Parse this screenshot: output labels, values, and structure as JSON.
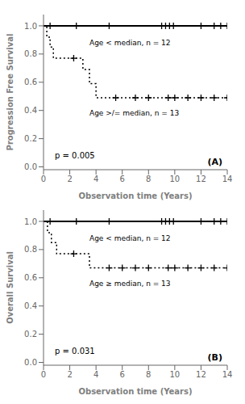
{
  "chart_data": [
    {
      "type": "line",
      "title": "(A)",
      "xlabel": "Observation time (Years)",
      "ylabel": "Progression Free Survival",
      "xlim": [
        0,
        14
      ],
      "ylim": [
        -0.02,
        1.08
      ],
      "xticks": [
        0,
        2,
        4,
        6,
        8,
        10,
        12,
        14
      ],
      "yticks": [
        {
          "value": 0.0,
          "label": "0.0"
        },
        0.2,
        0.4,
        0.6,
        0.8,
        {
          "value": 1.0,
          "label": "1.0"
        }
      ],
      "grid": false,
      "series": [
        {
          "type": "step",
          "line_style": "solid",
          "color": "#000000",
          "x": [
            0,
            0.5,
            2.5,
            5.0,
            9.0,
            9.3,
            9.6,
            9.9,
            12.0,
            13.0,
            13.5,
            14.0
          ],
          "values": [
            1.0,
            1.0,
            1.0,
            1.0,
            1.0,
            1.0,
            1.0,
            1.0,
            1.0,
            1.0,
            1.0,
            1.0
          ]
        },
        {
          "type": "scatter",
          "marker": "+",
          "color": "#000000",
          "x": [
            0.5,
            2.5,
            5.0,
            9.0,
            9.3,
            9.6,
            9.9,
            12.0,
            13.0,
            13.5,
            14.0
          ],
          "values": [
            1.0,
            1.0,
            1.0,
            1.0,
            1.0,
            1.0,
            1.0,
            1.0,
            1.0,
            1.0,
            1.0
          ]
        },
        {
          "type": "step",
          "line_style": "dotted",
          "color": "#000000",
          "x": [
            0,
            0.25,
            0.5,
            0.75,
            1.0,
            2.3,
            3.0,
            3.5,
            4.0,
            5.0,
            14.0
          ],
          "values": [
            1.0,
            0.92,
            0.85,
            0.77,
            0.77,
            0.77,
            0.69,
            0.59,
            0.49,
            0.49,
            0.49
          ]
        },
        {
          "type": "scatter",
          "marker": "+",
          "color": "#000000",
          "x": [
            2.3,
            5.5,
            7.0,
            8.0,
            9.5,
            10.0,
            11.0,
            12.0,
            13.0,
            14.0
          ],
          "values": [
            0.77,
            0.49,
            0.49,
            0.49,
            0.49,
            0.49,
            0.49,
            0.49,
            0.49,
            0.49
          ]
        }
      ],
      "annotations": [
        {
          "text": "Age < median, n = 12",
          "x": 3.5,
          "y": 0.88
        },
        {
          "text": "Age >/= median, n = 13",
          "x": 3.5,
          "y": 0.38
        },
        {
          "text": "p = 0.005"
        }
      ]
    },
    {
      "type": "line",
      "title": "(B)",
      "xlabel": "Observation time (Years)",
      "ylabel": "Overall Survival",
      "xlim": [
        0,
        14
      ],
      "ylim": [
        -0.02,
        1.08
      ],
      "xticks": [
        0,
        2,
        4,
        6,
        8,
        10,
        12,
        14
      ],
      "yticks": [
        {
          "value": 0.0,
          "label": "0.0"
        },
        0.2,
        0.4,
        0.6,
        0.8,
        {
          "value": 1.0,
          "label": "1.0"
        }
      ],
      "grid": false,
      "series": [
        {
          "type": "step",
          "line_style": "solid",
          "color": "#000000",
          "x": [
            0,
            0.5,
            2.5,
            5.0,
            9.0,
            9.3,
            9.6,
            9.9,
            12.0,
            13.0,
            13.5,
            14.0
          ],
          "values": [
            1.0,
            1.0,
            1.0,
            1.0,
            1.0,
            1.0,
            1.0,
            1.0,
            1.0,
            1.0,
            1.0,
            1.0
          ]
        },
        {
          "type": "scatter",
          "marker": "+",
          "color": "#000000",
          "x": [
            0.5,
            2.5,
            5.0,
            9.0,
            9.3,
            9.6,
            9.9,
            12.0,
            13.0,
            13.5,
            14.0
          ],
          "values": [
            1.0,
            1.0,
            1.0,
            1.0,
            1.0,
            1.0,
            1.0,
            1.0,
            1.0,
            1.0,
            1.0
          ]
        },
        {
          "type": "step",
          "line_style": "dotted",
          "color": "#000000",
          "x": [
            0,
            0.3,
            0.6,
            1.0,
            2.3,
            3.0,
            3.5,
            5.0,
            14.0
          ],
          "values": [
            1.0,
            0.92,
            0.85,
            0.77,
            0.77,
            0.77,
            0.67,
            0.67,
            0.67
          ]
        },
        {
          "type": "scatter",
          "marker": "+",
          "color": "#000000",
          "x": [
            2.3,
            5.0,
            6.0,
            7.0,
            8.0,
            9.5,
            10.0,
            11.0,
            12.0,
            13.0,
            14.0
          ],
          "values": [
            0.77,
            0.67,
            0.67,
            0.67,
            0.67,
            0.67,
            0.67,
            0.67,
            0.67,
            0.67,
            0.67
          ]
        }
      ],
      "annotations": [
        {
          "text": "Age < median, n = 12",
          "x": 3.5,
          "y": 0.88
        },
        {
          "text": "Age ≥ median, n = 13",
          "x": 3.5,
          "y": 0.56
        },
        {
          "text": "p = 0.031"
        }
      ]
    }
  ]
}
